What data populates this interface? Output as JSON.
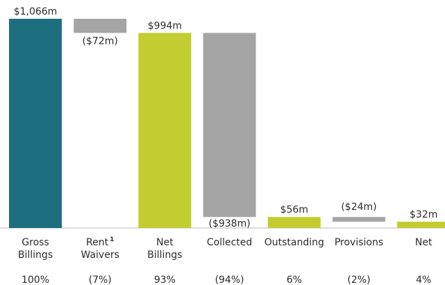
{
  "chart_data": {
    "type": "waterfall",
    "categories": [
      [
        "Gross",
        "Billings"
      ],
      [
        "Rent",
        "Waivers"
      ],
      [
        "Net",
        "Billings"
      ],
      [
        "Collected"
      ],
      [
        "Outstanding"
      ],
      [
        "Provisions"
      ],
      [
        "Net"
      ]
    ],
    "category_footnotes": [
      null,
      "1",
      null,
      null,
      null,
      null,
      null
    ],
    "values": [
      1066,
      -72,
      994,
      -938,
      56,
      -24,
      32
    ],
    "value_labels": [
      "$1,066m",
      "($72m)",
      "$994m",
      "($938m)",
      "$56m",
      "($24m)",
      "$32m"
    ],
    "share_labels": [
      "100%",
      "(7%)",
      "93%",
      "(94%)",
      "6%",
      "(2%)",
      "4%"
    ],
    "colors": [
      "#1d6f80",
      "#a4a5a4",
      "#c2cd30",
      "#a4a5a4",
      "#c2cd30",
      "#a4a5a4",
      "#c2cd30"
    ],
    "ylim": [
      0,
      1066
    ]
  }
}
